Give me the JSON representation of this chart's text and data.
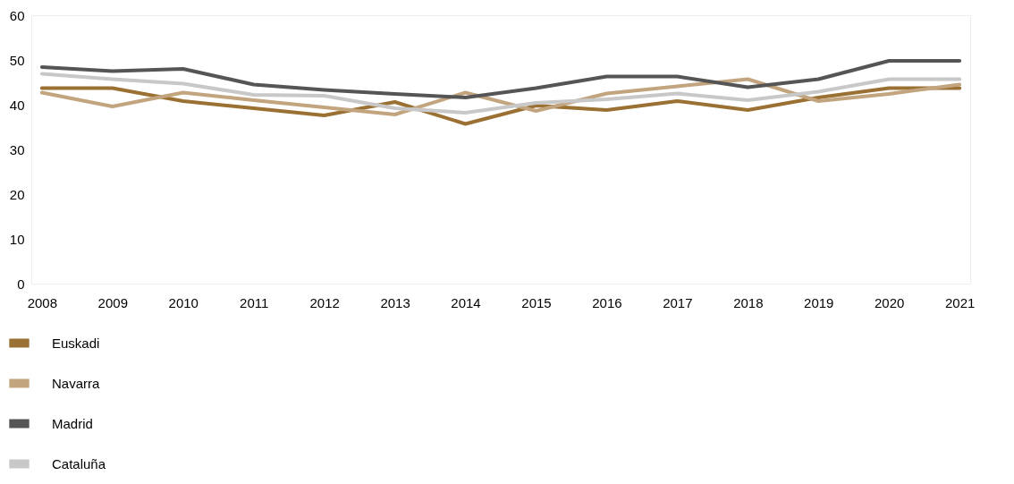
{
  "chart_data": {
    "type": "line",
    "categories": [
      "2008",
      "2009",
      "2010",
      "2011",
      "2012",
      "2013",
      "2014",
      "2015",
      "2016",
      "2017",
      "2018",
      "2019",
      "2020",
      "2021"
    ],
    "ylim": [
      0,
      60
    ],
    "yticks": [
      0,
      10,
      20,
      30,
      40,
      50,
      60
    ],
    "grid": false,
    "legend": "bottom left",
    "marker": "none",
    "line_style": "solid",
    "series": [
      {
        "name": "Euskadi",
        "color": "#9a7033",
        "values": [
          43.7,
          43.7,
          40.8,
          39.2,
          37.6,
          40.6,
          35.7,
          39.8,
          38.8,
          40.8,
          38.8,
          41.6,
          43.7,
          43.7
        ]
      },
      {
        "name": "Navarra",
        "color": "#c2a47e",
        "values": [
          42.7,
          39.6,
          42.7,
          41.0,
          39.4,
          37.8,
          42.7,
          38.6,
          42.5,
          44.1,
          45.7,
          40.8,
          42.4,
          44.5
        ]
      },
      {
        "name": "Madrid",
        "color": "#555555",
        "values": [
          48.4,
          47.5,
          48.0,
          44.5,
          43.3,
          42.4,
          41.6,
          43.7,
          46.3,
          46.3,
          43.9,
          45.7,
          49.8,
          49.8
        ]
      },
      {
        "name": "Cataluña",
        "color": "#c8c8c8",
        "values": [
          46.9,
          45.7,
          44.7,
          42.2,
          42.0,
          39.2,
          38.2,
          40.4,
          41.2,
          42.5,
          41.0,
          42.9,
          45.7,
          45.7
        ]
      }
    ]
  }
}
